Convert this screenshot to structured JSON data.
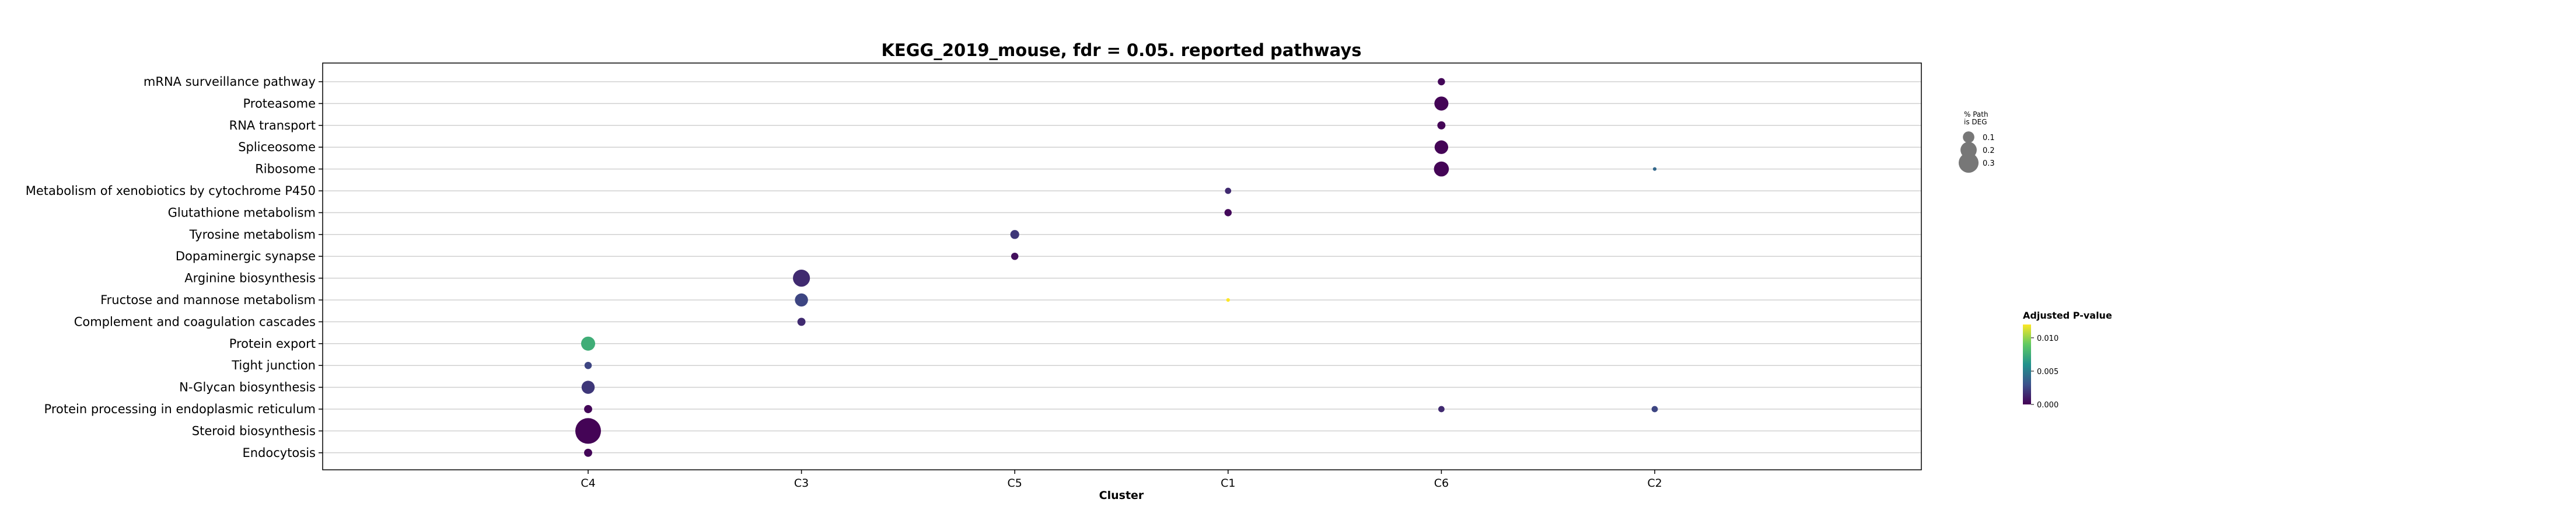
{
  "chart_data": {
    "type": "scatter",
    "title": "KEGG_2019_mouse, fdr = 0.05. reported pathways",
    "xlabel": "Cluster",
    "ylabel": "",
    "clusters": [
      "C4",
      "C3",
      "C5",
      "C1",
      "C6",
      "C2"
    ],
    "pathways": [
      "mRNA surveillance pathway",
      "Proteasome",
      "RNA transport",
      "Spliceosome",
      "Ribosome",
      "Metabolism of xenobiotics by cytochrome P450",
      "Glutathione metabolism",
      "Tyrosine metabolism",
      "Dopaminergic synapse",
      "Arginine biosynthesis",
      "Fructose and mannose metabolism",
      "Complement and coagulation cascades",
      "Protein export",
      "Tight junction",
      "N-Glycan biosynthesis",
      "Protein processing in endoplasmic reticulum",
      "Steroid biosynthesis",
      "Endocytosis"
    ],
    "points": [
      {
        "cluster": "C6",
        "pathway": "mRNA surveillance pathway",
        "pct": 0.04,
        "padj": 0.0002
      },
      {
        "cluster": "C6",
        "pathway": "Proteasome",
        "pct": 0.15,
        "padj": 0.0001
      },
      {
        "cluster": "C6",
        "pathway": "RNA transport",
        "pct": 0.05,
        "padj": 0.0001
      },
      {
        "cluster": "C6",
        "pathway": "Spliceosome",
        "pct": 0.14,
        "padj": 0.0001
      },
      {
        "cluster": "C6",
        "pathway": "Ribosome",
        "pct": 0.17,
        "padj": 0.0001
      },
      {
        "cluster": "C2",
        "pathway": "Ribosome",
        "pct": 0.01,
        "padj": 0.004
      },
      {
        "cluster": "C1",
        "pathway": "Metabolism of xenobiotics by cytochrome P450",
        "pct": 0.03,
        "padj": 0.0015
      },
      {
        "cluster": "C1",
        "pathway": "Glutathione metabolism",
        "pct": 0.04,
        "padj": 0.0003
      },
      {
        "cluster": "C5",
        "pathway": "Tyrosine metabolism",
        "pct": 0.06,
        "padj": 0.002
      },
      {
        "cluster": "C5",
        "pathway": "Dopaminergic synapse",
        "pct": 0.04,
        "padj": 0.0005
      },
      {
        "cluster": "C3",
        "pathway": "Arginine biosynthesis",
        "pct": 0.22,
        "padj": 0.0015
      },
      {
        "cluster": "C3",
        "pathway": "Fructose and mannose metabolism",
        "pct": 0.13,
        "padj": 0.0025
      },
      {
        "cluster": "C1",
        "pathway": "Fructose and mannose metabolism",
        "pct": 0.01,
        "padj": 0.012
      },
      {
        "cluster": "C3",
        "pathway": "Complement and coagulation cascades",
        "pct": 0.05,
        "padj": 0.0015
      },
      {
        "cluster": "C4",
        "pathway": "Protein export",
        "pct": 0.15,
        "padj": 0.0075
      },
      {
        "cluster": "C4",
        "pathway": "Tight junction",
        "pct": 0.04,
        "padj": 0.0025
      },
      {
        "cluster": "C4",
        "pathway": "N-Glycan biosynthesis",
        "pct": 0.13,
        "padj": 0.002
      },
      {
        "cluster": "C4",
        "pathway": "Protein processing in endoplasmic reticulum",
        "pct": 0.05,
        "padj": 0.0002
      },
      {
        "cluster": "C6",
        "pathway": "Protein processing in endoplasmic reticulum",
        "pct": 0.03,
        "padj": 0.0015
      },
      {
        "cluster": "C2",
        "pathway": "Protein processing in endoplasmic reticulum",
        "pct": 0.03,
        "padj": 0.0025
      },
      {
        "cluster": "C4",
        "pathway": "Steroid biosynthesis",
        "pct": 0.5,
        "padj": 0.0001
      },
      {
        "cluster": "C4",
        "pathway": "Endocytosis",
        "pct": 0.05,
        "padj": 0.0002
      }
    ],
    "size_legend": {
      "title_lines": [
        "% Path",
        "is DEG"
      ],
      "values": [
        0.1,
        0.2,
        0.3
      ]
    },
    "color_legend": {
      "title": "Adjusted P-value",
      "range": [
        0.0,
        0.012
      ],
      "ticks": [
        0.0,
        0.005,
        0.01
      ],
      "tick_labels": [
        "0.000",
        "0.005",
        "0.010"
      ],
      "colormap": [
        "#440154",
        "#3b528b",
        "#21918c",
        "#5ec962",
        "#fde725"
      ]
    },
    "grid": "horizontal"
  }
}
